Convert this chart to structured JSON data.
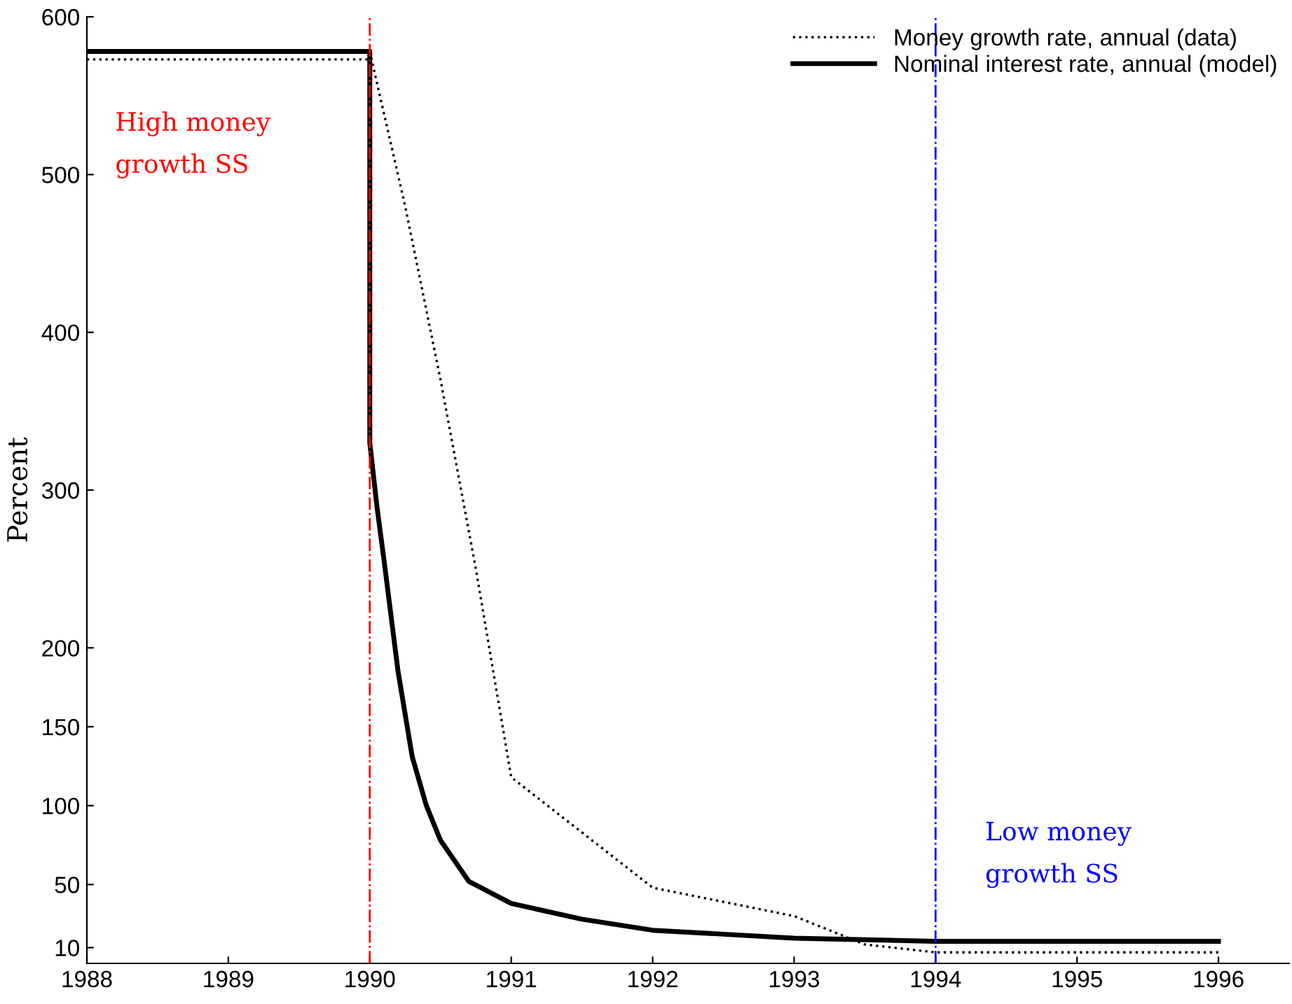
{
  "chart_data": {
    "type": "line",
    "ylabel": "Percent",
    "xlim": [
      1988,
      1996.5
    ],
    "xticks": [
      1988,
      1989,
      1990,
      1991,
      1992,
      1993,
      1994,
      1995,
      1996
    ],
    "ylim": [
      0,
      600
    ],
    "yticks": [
      10,
      50,
      100,
      150,
      200,
      300,
      400,
      500,
      600
    ],
    "grid": false,
    "legend": "top right",
    "marker": "none",
    "series": [
      {
        "name": "Money growth rate, annual (data)",
        "color": "#000000",
        "line_style": "dotted",
        "x": [
          1988,
          1990,
          1990,
          1990.25,
          1990.5,
          1990.75,
          1991,
          1992,
          1993,
          1993.5,
          1994,
          1996
        ],
        "values": [
          573,
          573,
          578,
          480,
          370,
          250,
          118,
          48,
          30,
          12,
          7,
          7
        ]
      },
      {
        "name": "Nominal interest rate, annual (model)",
        "color": "#000000",
        "line_style": "solid",
        "x": [
          1988,
          1990,
          1990,
          1990.05,
          1990.1,
          1990.2,
          1990.3,
          1990.4,
          1990.5,
          1990.7,
          1991,
          1991.5,
          1992,
          1993,
          1994,
          1996
        ],
        "values": [
          578,
          578,
          330,
          290,
          256,
          185,
          131,
          100,
          78,
          52,
          38,
          28,
          21,
          16,
          14,
          14
        ]
      }
    ],
    "ref_lines": [
      {
        "axis": "x",
        "value": 1990,
        "label": "High money\ngrowth SS",
        "color": "#ff0000",
        "line_style": "dashdot"
      },
      {
        "axis": "x",
        "value": 1994,
        "label": "Low money\ngrowth SS",
        "color": "#0000ff",
        "line_style": "dashdot"
      }
    ]
  }
}
